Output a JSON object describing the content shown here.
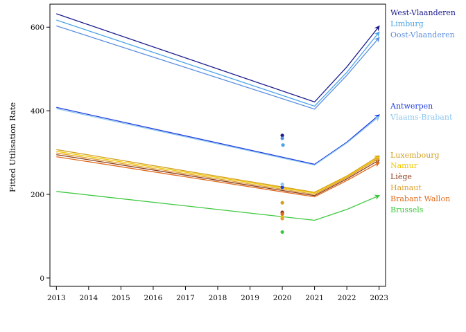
{
  "chart_data": {
    "type": "line",
    "title": "",
    "xlabel": "",
    "ylabel": "Fitted Utilisation Rate",
    "x_ticks": [
      2013,
      2014,
      2015,
      2016,
      2017,
      2018,
      2019,
      2020,
      2021,
      2022,
      2023
    ],
    "y_ticks": [
      0,
      200,
      400,
      600
    ],
    "xlim": [
      2012.8,
      2023.2
    ],
    "ylim": [
      -20,
      655
    ],
    "grid": false,
    "legend": "right (labels at line ends)",
    "series": [
      {
        "name": "West-Vlaanderen",
        "color": "#1a1a8c",
        "x": [
          2013,
          2021,
          2022,
          2023
        ],
        "y": [
          632,
          421,
          505,
          602
        ],
        "points_2020": [
          341
        ]
      },
      {
        "name": "Limburg",
        "color": "#4aa3e8",
        "x": [
          2013,
          2021,
          2022,
          2023
        ],
        "y": [
          617,
          411,
          492,
          588
        ],
        "points_2020": [
          318
        ]
      },
      {
        "name": "Oost-Vlaanderen",
        "color": "#5b8fe0",
        "x": [
          2013,
          2021,
          2022,
          2023
        ],
        "y": [
          603,
          404,
          485,
          575
        ],
        "points_2020": [
          334
        ]
      },
      {
        "name": "Antwerpen",
        "color": "#1f3ee0",
        "x": [
          2013,
          2021,
          2022,
          2023
        ],
        "y": [
          408,
          272,
          325,
          390
        ],
        "points_2020": [
          217
        ]
      },
      {
        "name": "Vlaams-Brabant",
        "color": "#8ec8f0",
        "x": [
          2013,
          2021,
          2022,
          2023
        ],
        "y": [
          405,
          270,
          323,
          386
        ],
        "points_2020": [
          224
        ]
      },
      {
        "name": "Luxembourg",
        "color": "#d4a020",
        "x": [
          2013,
          2021,
          2022,
          2023
        ],
        "y": [
          307,
          205,
          244,
          292
        ],
        "points_2020": [
          180
        ]
      },
      {
        "name": "Namur",
        "color": "#f0c800",
        "x": [
          2013,
          2021,
          2022,
          2023
        ],
        "y": [
          303,
          203,
          242,
          289
        ],
        "points_2020": [
          146
        ]
      },
      {
        "name": "Liège",
        "color": "#8b3a1a",
        "x": [
          2013,
          2021,
          2022,
          2023
        ],
        "y": [
          295,
          197,
          237,
          282
        ],
        "points_2020": [
          157
        ]
      },
      {
        "name": "Hainaut",
        "color": "#e0a030",
        "x": [
          2013,
          2021,
          2022,
          2023
        ],
        "y": [
          299,
          200,
          240,
          286
        ],
        "points_2020": [
          142
        ]
      },
      {
        "name": "Brabant Wallon",
        "color": "#e06a1a",
        "x": [
          2013,
          2021,
          2022,
          2023
        ],
        "y": [
          290,
          194,
          233,
          276
        ],
        "points_2020": [
          153
        ]
      },
      {
        "name": "Brussels",
        "color": "#3cc83c",
        "x": [
          2013,
          2021,
          2022,
          2023
        ],
        "y": [
          207,
          138,
          164,
          197
        ],
        "points_2020": [
          110
        ]
      }
    ]
  }
}
